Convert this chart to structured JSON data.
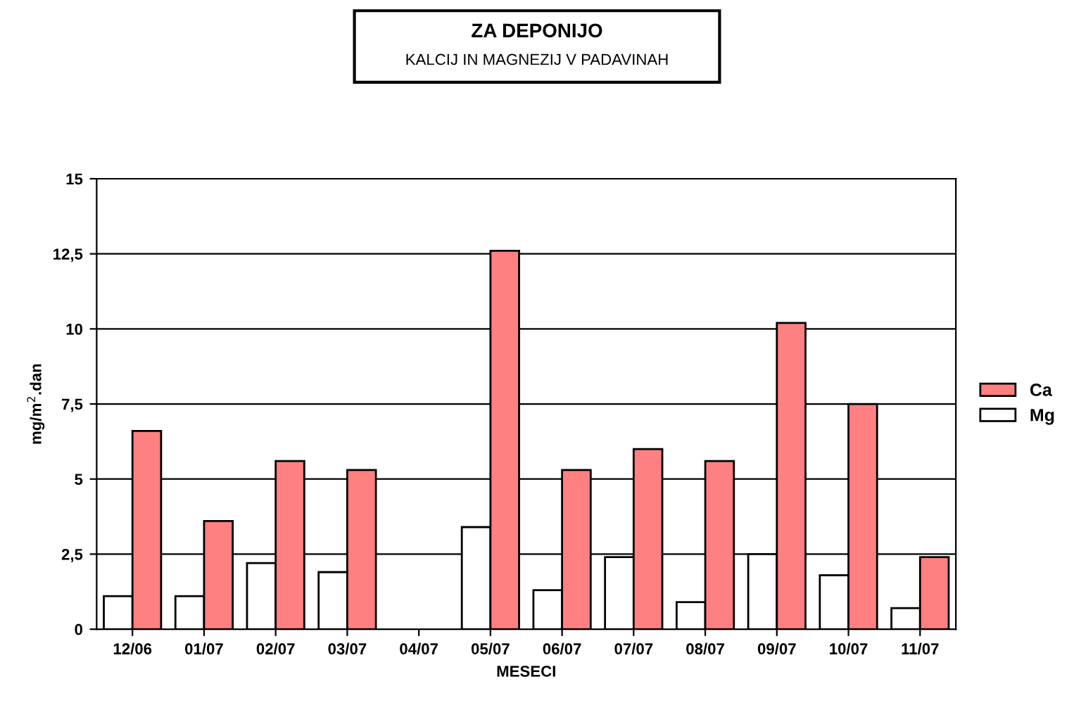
{
  "chart_data": {
    "type": "bar",
    "title": "ZA DEPONIJO",
    "subtitle": "KALCIJ IN MAGNEZIJ V PADAVINAH",
    "xlabel": "MESECI",
    "ylabel": "mg/m$^{2}$.dan",
    "categories": [
      "12/06",
      "01/07",
      "02/07",
      "03/07",
      "04/07",
      "05/07",
      "06/07",
      "07/07",
      "08/07",
      "09/07",
      "10/07",
      "11/07"
    ],
    "series": [
      {
        "name": "Mg",
        "color": "#ffffff",
        "values": [
          1.1,
          1.1,
          2.2,
          1.9,
          null,
          3.4,
          1.3,
          2.4,
          0.9,
          2.5,
          1.8,
          0.7
        ]
      },
      {
        "name": "Ca",
        "color": "#ff8080",
        "values": [
          6.6,
          3.6,
          5.6,
          5.3,
          null,
          12.6,
          5.3,
          6.0,
          5.6,
          10.2,
          7.5,
          2.4
        ]
      }
    ],
    "ylim": [
      0,
      15
    ],
    "yticks": [
      0,
      {
        "value": 2.5,
        "label": "2,5"
      },
      5,
      {
        "value": 7.5,
        "label": "7,5"
      },
      10,
      {
        "value": 12.5,
        "label": "12,5"
      },
      15
    ],
    "grid": "y",
    "legend": "right"
  }
}
